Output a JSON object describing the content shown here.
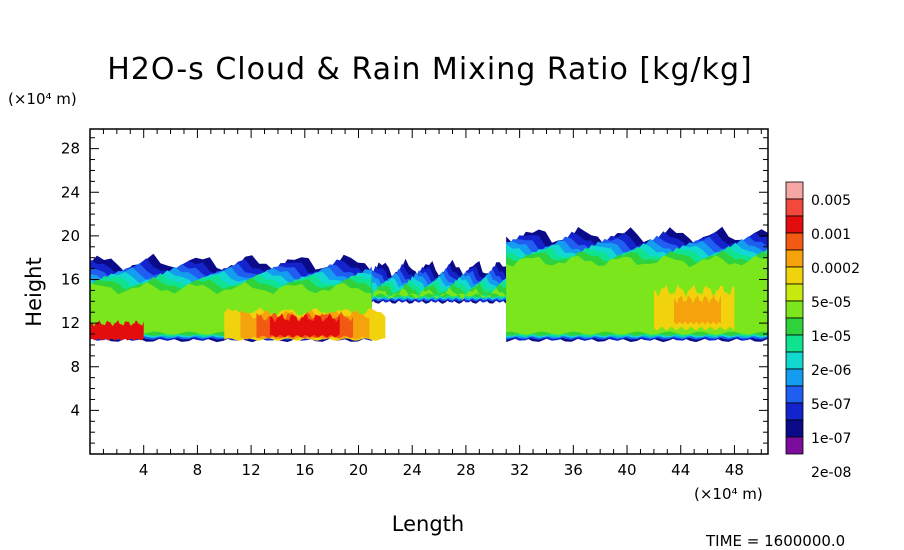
{
  "chart_data": {
    "type": "heatmap",
    "title": "H2O-s Cloud & Rain Mixing Ratio [kg/kg]",
    "xlabel": "Length",
    "ylabel": "Height",
    "x_unit": "(×10⁴ m)",
    "y_unit": "(×10⁴ m)",
    "xlim": [
      0,
      50.5
    ],
    "ylim": [
      0,
      29.8
    ],
    "x_ticks": [
      4,
      8,
      12,
      16,
      20,
      24,
      28,
      32,
      36,
      40,
      44,
      48
    ],
    "y_ticks": [
      4,
      8,
      12,
      16,
      20,
      24,
      28
    ],
    "colorbar": {
      "labels": [
        "0.005",
        "0.001",
        "0.0002",
        "5e-05",
        "1e-05",
        "2e-06",
        "5e-07",
        "1e-07",
        "2e-08"
      ],
      "colors": [
        "#f7a6a6",
        "#f2493c",
        "#e40d0d",
        "#f25a14",
        "#f5a30d",
        "#f0d30d",
        "#c8e80f",
        "#7be61c",
        "#2fd23a",
        "#10e38f",
        "#11d9d0",
        "#149cf0",
        "#1f5ef0",
        "#1424cc",
        "#0b0b8a",
        "#7a0d9b"
      ]
    },
    "cloud_layer": {
      "x_segments": [
        [
          0,
          21
        ],
        [
          21,
          31
        ],
        [
          31,
          50.5
        ]
      ],
      "base_height": [
        10.5,
        14.0,
        10.5
      ],
      "top_height": [
        17.5,
        17.0,
        20.0
      ],
      "core_max_ratio": "0.001",
      "core_location_x": [
        10,
        22
      ],
      "core_location_y": [
        10.5,
        13
      ]
    },
    "grid": false,
    "legend": "right"
  },
  "footer": {
    "time": "TIME = 1600000.0"
  }
}
